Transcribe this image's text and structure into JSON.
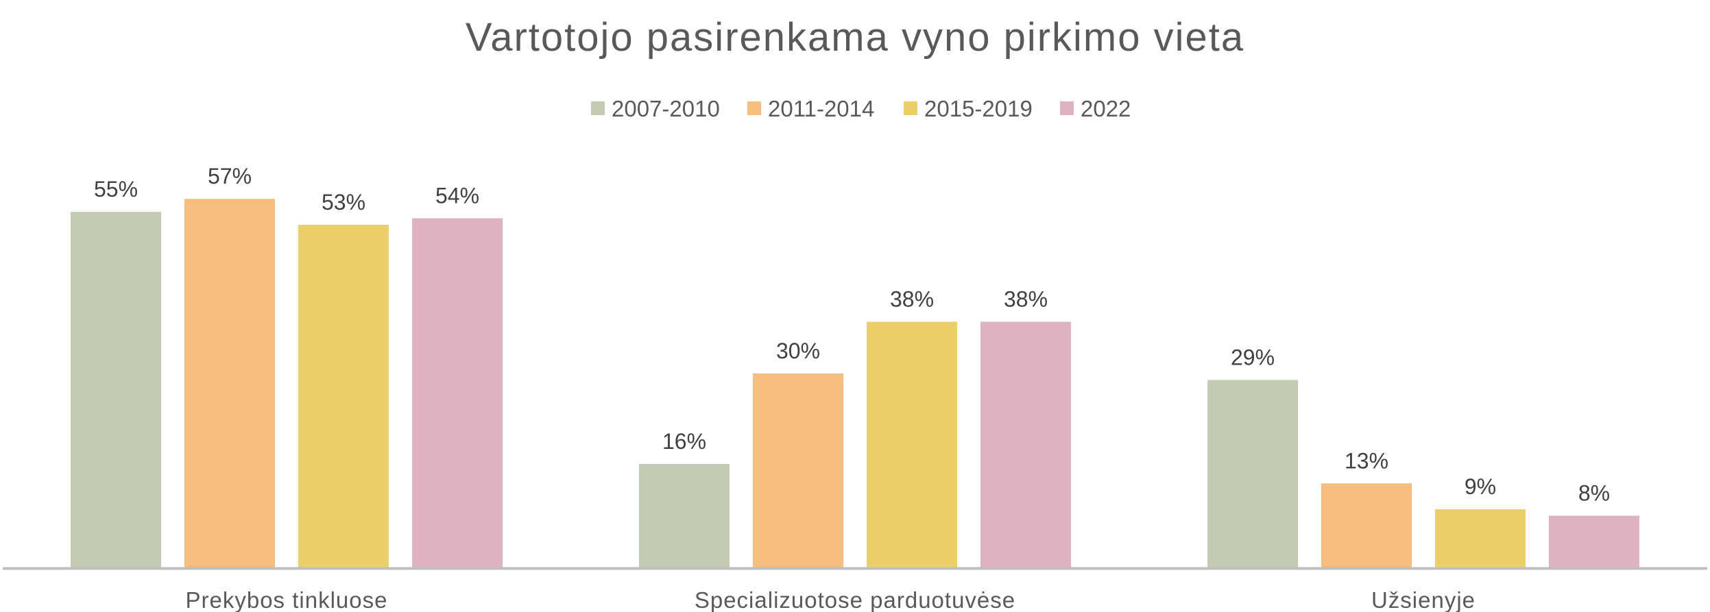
{
  "chart_data": {
    "type": "bar",
    "title": "Vartotojo pasirenkama vyno pirkimo vieta",
    "categories": [
      "Prekybos tinkluose",
      "Specializuotose parduotuvėse",
      "Užsienyje"
    ],
    "series": [
      {
        "name": "2007-2010",
        "values": [
          55,
          16,
          29
        ],
        "labels": [
          "55%",
          "16%",
          "29%"
        ],
        "color": "#C3CCB3"
      },
      {
        "name": "2011-2014",
        "values": [
          57,
          30,
          13
        ],
        "labels": [
          "57%",
          "30%",
          "13%"
        ],
        "color": "#F5BE7E"
      },
      {
        "name": "2015-2019",
        "values": [
          53,
          38,
          9
        ],
        "labels": [
          "53%",
          "38%",
          "9%"
        ],
        "color": "#EBD06A"
      },
      {
        "name": "2022",
        "values": [
          54,
          38,
          8
        ],
        "labels": [
          "54%",
          "38%",
          "8%"
        ],
        "color": "#DEB2C0"
      }
    ],
    "ylim": [
      0,
      57
    ],
    "grid": false,
    "legend_position": "top",
    "axis_color": "#BFBFBF"
  }
}
